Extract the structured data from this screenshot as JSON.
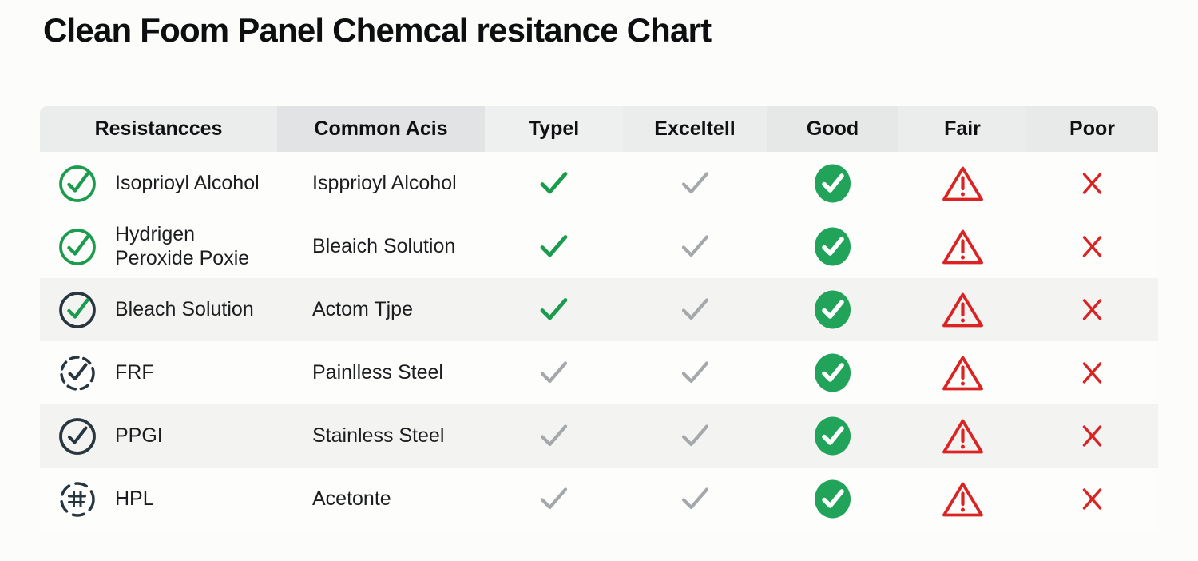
{
  "colors": {
    "green": "#1b9b4d",
    "green_fill": "#21a359",
    "gray": "#a4a8aa",
    "red": "#da2424",
    "dark": "#27363f"
  },
  "chart_data": {
    "type": "table",
    "title": "Clean Foom Panel Chemcal resitance Chart",
    "columns": [
      "Resistancces",
      "Common Acis",
      "Typel",
      "Exceltell",
      "Good",
      "Fair",
      "Poor"
    ],
    "rating_icon_legend": [
      "check-green",
      "check-gray",
      "circle-check-filled",
      "warning-triangle",
      "x-mark"
    ],
    "rows": [
      {
        "icon": "circle-check-green",
        "resistance": "Isoprioyl Alcohol",
        "common_acid": "Ispprioyl Alcohol",
        "ratings": [
          "check-green",
          "check-gray",
          "circle-check-filled",
          "warning-triangle",
          "x-mark"
        ]
      },
      {
        "icon": "circle-check-green",
        "resistance": "Hydrigen Peroxide Poxie",
        "common_acid": "Bleaich Solution",
        "ratings": [
          "check-green",
          "check-gray",
          "circle-check-filled",
          "warning-triangle",
          "x-mark"
        ]
      },
      {
        "icon": "circle-check-dark-green",
        "resistance": "Bleach Solution",
        "common_acid": "Actom Tjpe",
        "ratings": [
          "check-green",
          "check-gray",
          "circle-check-filled",
          "warning-triangle",
          "x-mark"
        ]
      },
      {
        "icon": "dashed-circle-check",
        "resistance": "FRF",
        "common_acid": "Painlless Steel",
        "ratings": [
          "check-gray",
          "check-gray",
          "circle-check-filled",
          "warning-triangle",
          "x-mark"
        ]
      },
      {
        "icon": "circle-check-dark",
        "resistance": "PPGI",
        "common_acid": "Stainless Steel",
        "ratings": [
          "check-gray",
          "check-gray",
          "circle-check-filled",
          "warning-triangle",
          "x-mark"
        ]
      },
      {
        "icon": "dashed-circle-hash",
        "resistance": "HPL",
        "common_acid": "Acetonte",
        "ratings": [
          "check-gray",
          "check-gray",
          "circle-check-filled",
          "warning-triangle",
          "x-mark"
        ]
      }
    ]
  }
}
